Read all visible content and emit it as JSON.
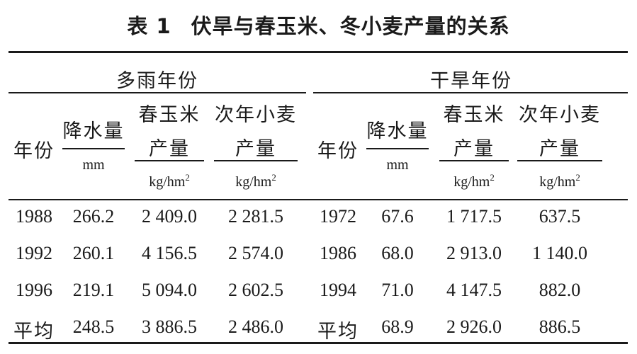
{
  "caption": {
    "number": "表 1",
    "title": "伏旱与春玉米、冬小麦产量的关系"
  },
  "groups": {
    "wet": "多雨年份",
    "dry": "干旱年份"
  },
  "headers": {
    "year": "年份",
    "precip": "降水量",
    "precip_unit": "mm",
    "corn_line1": "春玉米",
    "corn_line2": "产量",
    "wheat_line1": "次年小麦",
    "wheat_line2": "产量",
    "yield_unit_base": "kg/hm",
    "yield_unit_exp": "2"
  },
  "rows": [
    {
      "wet": [
        "1988",
        "266.2",
        "2 409.0",
        "2 281.5"
      ],
      "dry": [
        "1972",
        "67.6",
        "1 717.5",
        "637.5"
      ]
    },
    {
      "wet": [
        "1992",
        "260.1",
        "4 156.5",
        "2 574.0"
      ],
      "dry": [
        "1986",
        "68.0",
        "2 913.0",
        "1 140.0"
      ]
    },
    {
      "wet": [
        "1996",
        "219.1",
        "5 094.0",
        "2 602.5"
      ],
      "dry": [
        "1994",
        "71.0",
        "4 147.5",
        "882.0"
      ]
    },
    {
      "wet": [
        "平均",
        "248.5",
        "3 886.5",
        "2 486.0"
      ],
      "dry": [
        "平均",
        "68.9",
        "2 926.0",
        "886.5"
      ]
    }
  ]
}
